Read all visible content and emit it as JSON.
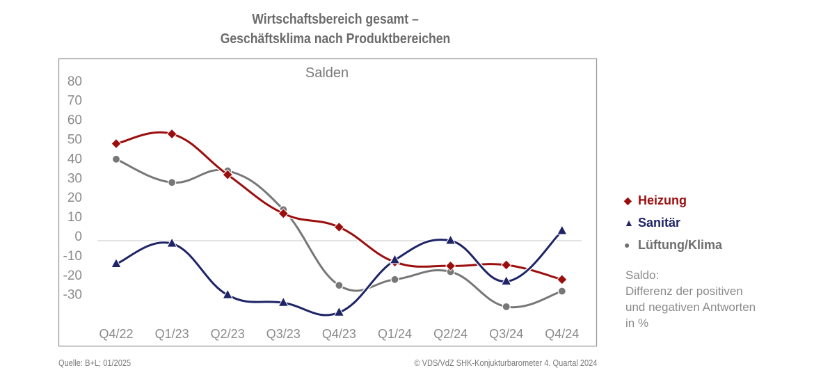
{
  "title_line1": "Wirtschaftsbereich gesamt –",
  "title_line2": "Geschäftsklima nach Produktbereichen",
  "chart_data": {
    "type": "line",
    "title": "Wirtschaftsbereich gesamt – Geschäftsklima nach Produktbereichen",
    "subtitle": "Salden",
    "xlabel": "",
    "ylabel": "",
    "categories": [
      "Q4/22",
      "Q1/23",
      "Q2/23",
      "Q3/23",
      "Q4/23",
      "Q1/24",
      "Q2/24",
      "Q3/24",
      "Q4/24"
    ],
    "yticks": [
      80,
      70,
      60,
      50,
      40,
      30,
      20,
      10,
      0,
      -10,
      -20,
      -30
    ],
    "ylim": [
      -40,
      80
    ],
    "grid": "zero-line only",
    "smooth": true,
    "legend_position": "right",
    "series": [
      {
        "name": "Heizung",
        "color": "#9b0e0e",
        "marker": "diamond",
        "values": [
          50,
          55,
          34,
          14,
          7,
          -11,
          -13,
          -12.5,
          -20
        ]
      },
      {
        "name": "Sanitär",
        "color": "#1e2466",
        "marker": "triangle",
        "values": [
          -12,
          -1.5,
          -28,
          -32,
          -37,
          -10,
          0,
          -21,
          5
        ]
      },
      {
        "name": "Lüftung/Klima",
        "color": "#777777",
        "marker": "circle",
        "values": [
          42,
          30,
          36,
          16,
          -23,
          -20,
          -16,
          -34,
          -26
        ]
      }
    ]
  },
  "legend": [
    {
      "label": "Heizung",
      "symbol": "◆",
      "color": "#9b0e0e"
    },
    {
      "label": "Sanitär",
      "symbol": "▲",
      "color": "#1e2466"
    },
    {
      "label": "Lüftung/Klima",
      "symbol": "●",
      "color": "#6e6e6e"
    }
  ],
  "note": {
    "line1": "Saldo:",
    "line2": "Differenz der positiven",
    "line3": "und negativen Antworten",
    "line4": "in %"
  },
  "footer": {
    "source": "Quelle: B+L; 01/2025",
    "copyright": "© VDS/VdZ SHK-Konjukturbarometer 4. Quartal 2024"
  }
}
